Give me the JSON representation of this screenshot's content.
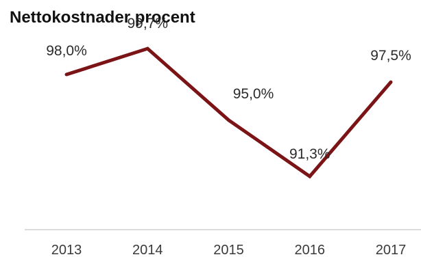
{
  "chart_data": {
    "type": "line",
    "title": "Nettokostnader procent",
    "xlabel": "",
    "ylabel": "",
    "categories": [
      "2013",
      "2014",
      "2015",
      "2016",
      "2017"
    ],
    "series": [
      {
        "values": [
          98.0,
          99.7,
          95.0,
          91.3,
          97.5
        ],
        "labels": [
          "98,0%",
          "99,7%",
          "95,0%",
          "91,3%",
          "97,5%"
        ],
        "color": "#7b1416"
      }
    ],
    "ylim": [
      82,
      102
    ],
    "grid": false,
    "legend": "none",
    "axis_line_color": "#dcdcdc"
  }
}
